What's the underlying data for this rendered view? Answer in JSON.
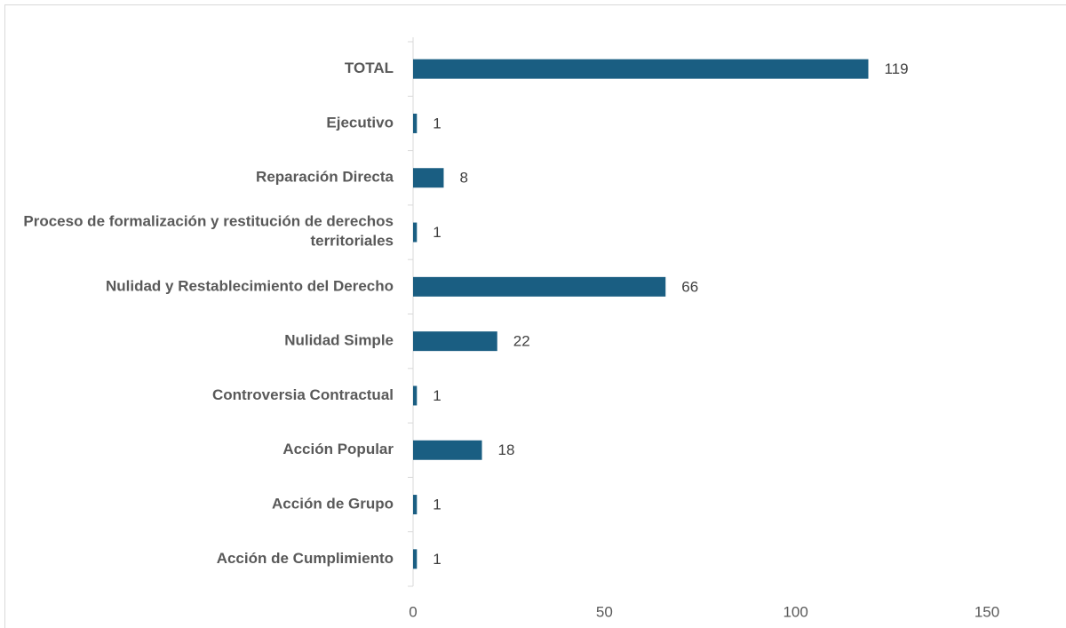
{
  "chart_data": {
    "type": "hbar",
    "categories": [
      "TOTAL",
      "Ejecutivo",
      "Reparación Directa",
      "Proceso de formalización y restitución de derechos territoriales",
      "Nulidad y Restablecimiento del Derecho",
      "Nulidad Simple",
      "Controversia Contractual",
      "Acción Popular",
      "Acción de Grupo",
      "Acción de Cumplimiento"
    ],
    "values": [
      119,
      1,
      8,
      1,
      66,
      22,
      1,
      18,
      1,
      1
    ],
    "color": "#1a5e82",
    "xlim": [
      0,
      150
    ],
    "xticks": [
      0,
      50,
      100,
      150
    ],
    "grid": false
  }
}
